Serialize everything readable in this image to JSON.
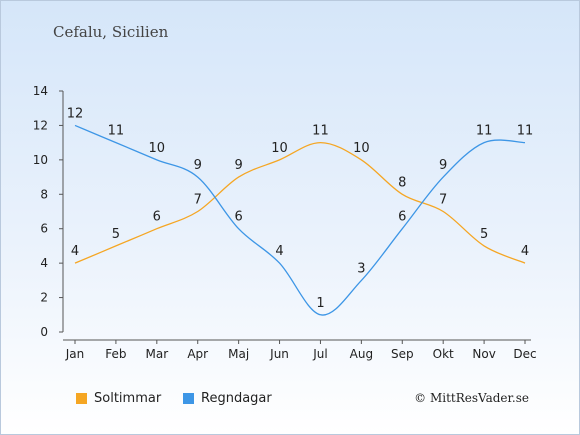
{
  "chart_data": {
    "type": "line",
    "title": "Cefalu, Sicilien",
    "categories": [
      "Jan",
      "Feb",
      "Mar",
      "Apr",
      "Maj",
      "Jun",
      "Jul",
      "Aug",
      "Sep",
      "Okt",
      "Nov",
      "Dec"
    ],
    "ylim": [
      0,
      14
    ],
    "yticks": [
      0,
      2,
      4,
      6,
      8,
      10,
      12,
      14
    ],
    "grid": false,
    "legend_position": "bottom-left",
    "series": [
      {
        "name": "Soltimmar",
        "color": "#f5a623",
        "values": [
          4,
          5,
          6,
          7,
          9,
          10,
          11,
          10,
          8,
          7,
          5,
          4
        ]
      },
      {
        "name": "Regndagar",
        "color": "#3d96e6",
        "values": [
          12,
          11,
          10,
          9,
          6,
          4,
          1,
          3,
          6,
          9,
          11,
          11
        ]
      }
    ]
  },
  "legend": [
    {
      "label": "Soltimmar",
      "color": "#f5a623"
    },
    {
      "label": "Regndagar",
      "color": "#3d96e6"
    }
  ],
  "credit": "© MittResVader.se"
}
